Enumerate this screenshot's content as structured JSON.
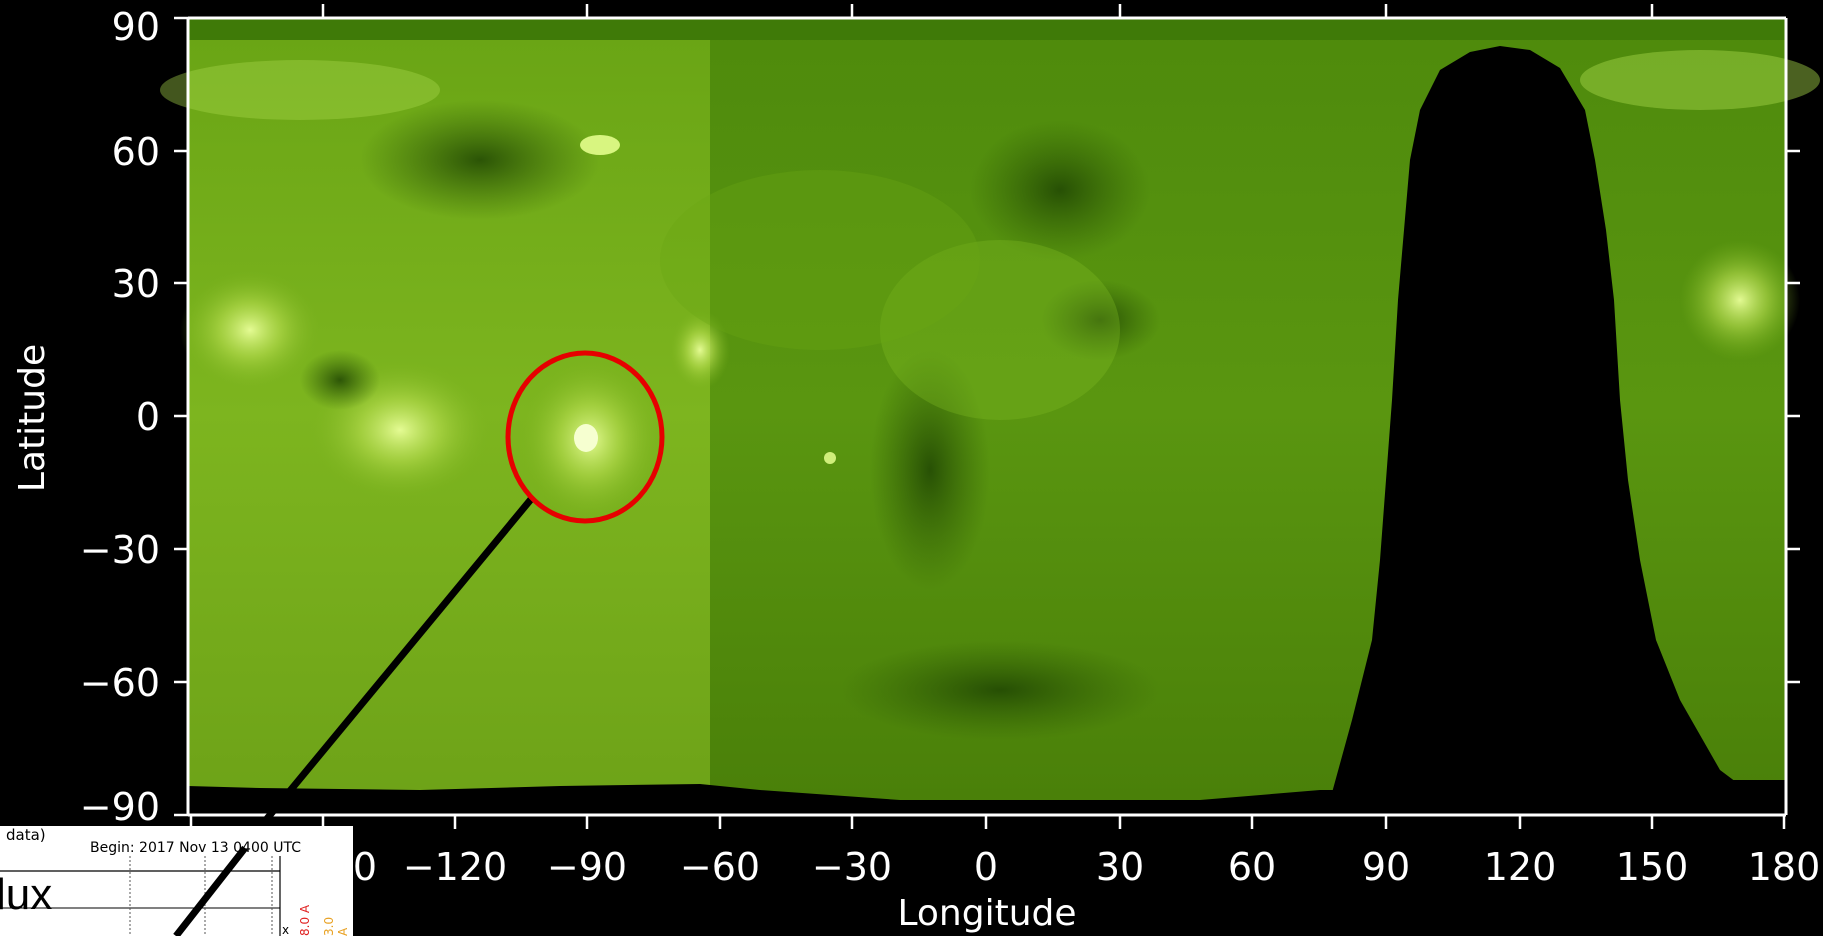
{
  "plot": {
    "ylabel": "Latitude",
    "xlabel": "Longitude",
    "yticks": [
      "90",
      "60",
      "30",
      "0",
      "−30",
      "−60",
      "−90"
    ],
    "xticks": [
      "0",
      "−120",
      "−90",
      "−60",
      "−30",
      "0",
      "30",
      "60",
      "90",
      "120",
      "150",
      "180"
    ],
    "colors": {
      "map_base": "#5f9a10",
      "map_dark": "#2f5a05",
      "map_bright": "#c8e86a",
      "mask": "#000000",
      "highlight_circle": "#e60000",
      "pointer_line": "#000000"
    }
  },
  "highlight": {
    "shape": "circle-icon",
    "note": "Active region near longitude −90, latitude −5"
  },
  "inset": {
    "title_fragment": "data)",
    "begin": "Begin: 2017 Nov 13 0400 UTC",
    "big_text": "lux",
    "side_labels": [
      {
        "text": "8.0 A",
        "color": "#e02020"
      },
      {
        "text": "3.0 A",
        "color": "#e8a020"
      }
    ],
    "x_marker": "x"
  }
}
